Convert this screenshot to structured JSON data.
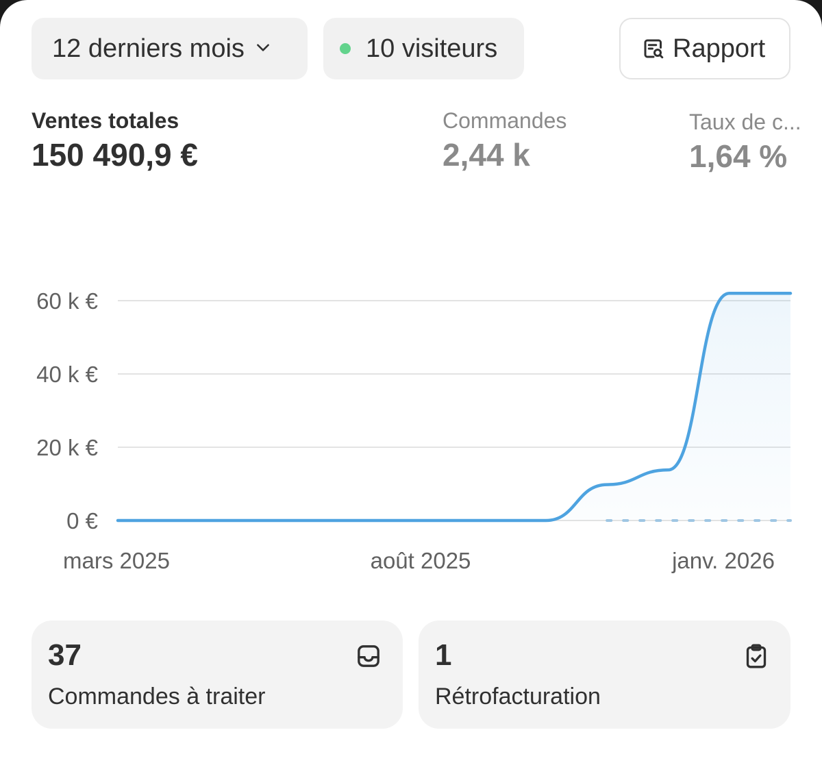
{
  "toolbar": {
    "period_label": "12 derniers mois",
    "visitors_label": "10 visiteurs",
    "report_label": "Rapport",
    "icons": {
      "period": "chevron-down-icon",
      "visitors": "live-dot-icon",
      "report": "report-search-icon"
    }
  },
  "metrics": {
    "total_sales": {
      "label": "Ventes totales",
      "value": "150 490,9 €"
    },
    "orders": {
      "label": "Commandes",
      "value": "2,44 k"
    },
    "conversion": {
      "label": "Taux de c...",
      "value": "1,64 %"
    }
  },
  "chart_data": {
    "type": "line",
    "y_tick_labels": [
      "0 €",
      "20 k €",
      "40 k €",
      "60 k €"
    ],
    "y_ticks": [
      0,
      20000,
      40000,
      60000
    ],
    "ylim": [
      0,
      63000
    ],
    "x_tick_labels": [
      "mars 2025",
      "août 2025",
      "janv. 2026"
    ],
    "grid": true,
    "colors": {
      "line": "#4ea3e0",
      "grid": "#e3e3e3",
      "comparison": "#9fc6e3"
    },
    "series": [
      {
        "x": [
          "mars 2025",
          "avr. 2025",
          "mai 2025",
          "juin 2025",
          "juil. 2025",
          "août 2025",
          "sept. 2025",
          "oct. 2025",
          "nov. 2025",
          "déc. 2025",
          "janv. 2026",
          "févr. 2026"
        ],
        "values": [
          0,
          0,
          0,
          0,
          0,
          0,
          0,
          0,
          9800,
          13800,
          62000,
          62000
        ]
      },
      {
        "style": "dotted",
        "x": [
          "nov. 2025",
          "déc. 2025",
          "janv. 2026",
          "févr. 2026"
        ],
        "values": [
          0,
          0,
          0,
          0
        ]
      }
    ]
  },
  "tiles": [
    {
      "number": "37",
      "label": "Commandes à traiter",
      "icon": "inbox-icon"
    },
    {
      "number": "1",
      "label": "Rétrofacturation",
      "icon": "clipboard-check-icon"
    }
  ]
}
